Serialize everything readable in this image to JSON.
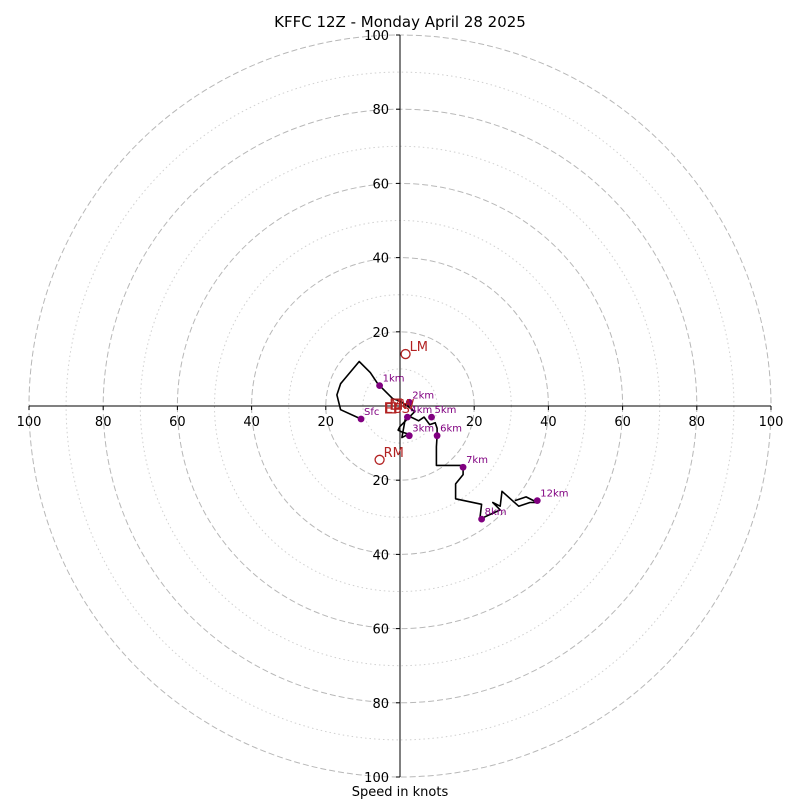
{
  "chart_data": {
    "type": "scatter",
    "title": "KFFC 12Z - Monday April 28 2025",
    "xlabel": "Speed in knots",
    "xlim": [
      -100,
      100
    ],
    "ylim": [
      -100,
      100
    ],
    "rings_major": [
      20,
      40,
      60,
      80,
      100
    ],
    "rings_minor": [
      10,
      30,
      50,
      70,
      90
    ],
    "ticks_x": [
      "100",
      "80",
      "60",
      "40",
      "20",
      "",
      "20",
      "40",
      "60",
      "80",
      "100"
    ],
    "ticks_y": [
      "100",
      "80",
      "60",
      "40",
      "20",
      "20",
      "40",
      "60",
      "80",
      "100"
    ],
    "hodograph": {
      "x": [
        -10.5,
        -16,
        -17,
        -16,
        -11,
        -8,
        -6,
        -4,
        -2,
        -0.5,
        0.5,
        2,
        4,
        2,
        0,
        -0.5,
        0.5,
        2,
        1.5,
        0.5,
        1.5,
        3,
        5,
        6.5,
        8,
        9.5,
        10,
        10,
        9.8,
        9.8,
        17,
        17,
        15,
        15,
        22,
        21.5,
        27,
        25,
        27,
        27.5,
        32,
        35,
        37,
        34,
        31
      ],
      "y": [
        -3.5,
        -1,
        3,
        6,
        12,
        9,
        6,
        4,
        2,
        1.5,
        1,
        0,
        -1.5,
        -3.5,
        -5.5,
        -6.5,
        -7,
        -7.5,
        -8,
        -8.5,
        -3,
        -3,
        -4,
        -3,
        -5,
        -4.5,
        -6,
        -8,
        -11,
        -16,
        -16,
        -18.5,
        -21,
        -25,
        -26.5,
        -30.5,
        -28,
        -26,
        -27,
        -23,
        -27,
        -26,
        -26,
        -24.5,
        -25.5
      ]
    },
    "height_labels": [
      {
        "label": "Sfc",
        "x": -10.5,
        "y": -3.5
      },
      {
        "label": "1km",
        "x": -5.5,
        "y": 5.5
      },
      {
        "label": "2km",
        "x": 2.5,
        "y": 1
      },
      {
        "label": "3km",
        "x": 2.5,
        "y": -8
      },
      {
        "label": "4km",
        "x": 2,
        "y": -3
      },
      {
        "label": "5km",
        "x": 8.5,
        "y": -3
      },
      {
        "label": "6km",
        "x": 10,
        "y": -8
      },
      {
        "label": "7km",
        "x": 17,
        "y": -16.5
      },
      {
        "label": "8km",
        "x": 22,
        "y": -30.5
      },
      {
        "label": "12km",
        "x": 37,
        "y": -25.5
      }
    ],
    "motion_markers": [
      {
        "label": "LM",
        "x": 1.5,
        "y": 14
      },
      {
        "label": "RM",
        "x": -5.5,
        "y": -14.5
      },
      {
        "label": "MW",
        "x": -1,
        "y": 0.5
      },
      {
        "label": "EBS",
        "x": -2.5,
        "y": -0.5
      }
    ],
    "colors": {
      "line": "#000000",
      "points": "#800080",
      "markers": "#b22222",
      "rings": "#b8b8b8",
      "rings_minor": "#d0d0d0"
    }
  }
}
